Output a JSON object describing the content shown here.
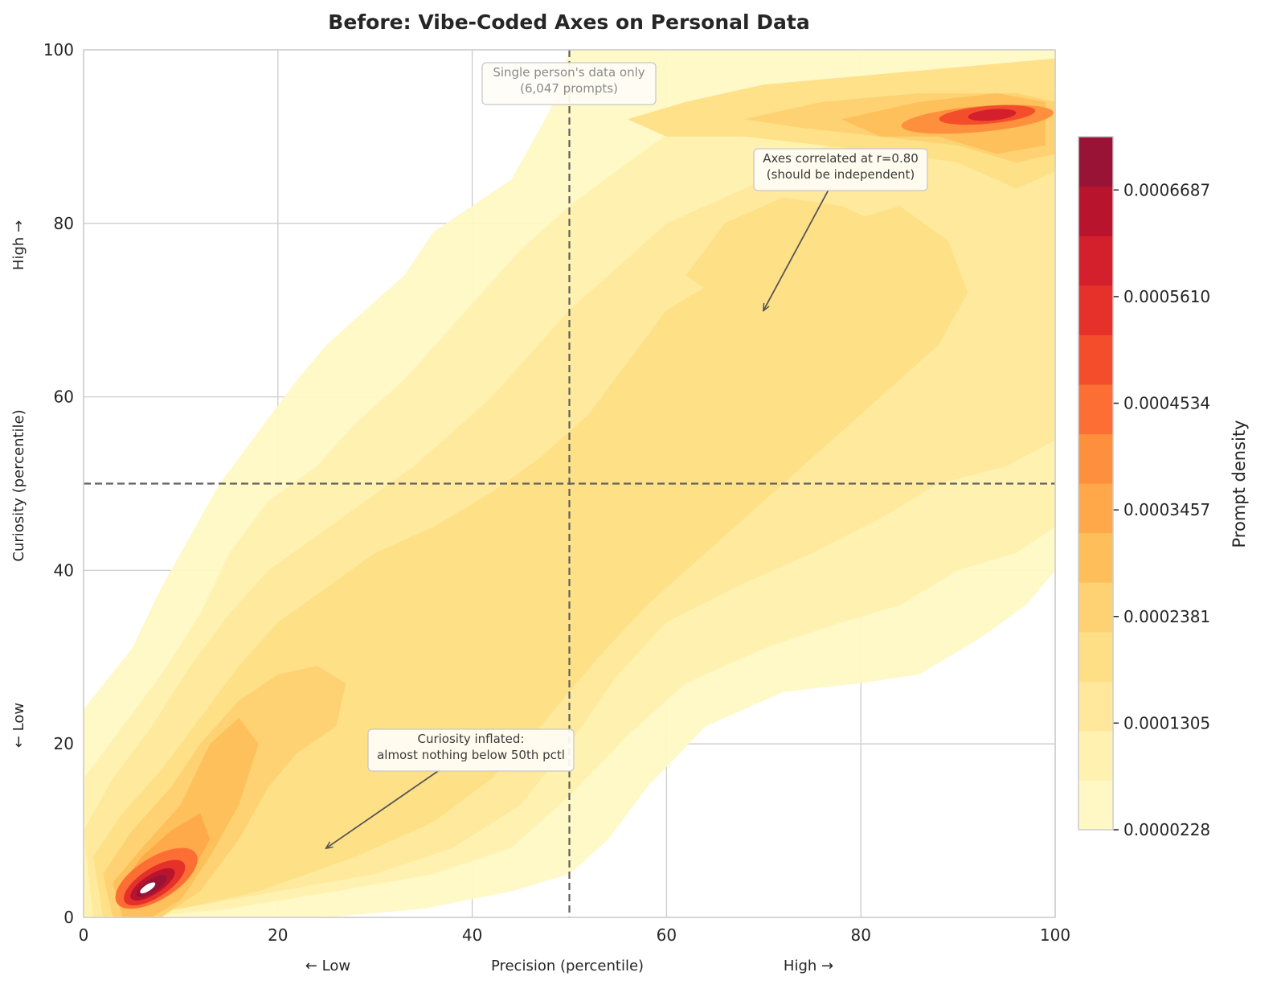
{
  "chart_data": {
    "type": "kde-contour",
    "title": "Before: Vibe-Coded Axes on Personal Data",
    "xlabel": "Precision (percentile)",
    "ylabel": "Curiosity (percentile)",
    "x_low_label": "← Low",
    "x_high_label": "High →",
    "y_low_label": "← Low",
    "y_high_label": "High →",
    "xlim": [
      0,
      100
    ],
    "ylim": [
      0,
      100
    ],
    "xticks": [
      "0",
      "20",
      "40",
      "60",
      "80",
      "100"
    ],
    "yticks": [
      "0",
      "20",
      "40",
      "60",
      "80",
      "100"
    ],
    "grid": true,
    "reference_lines": {
      "x": 50,
      "y": 50
    },
    "colorbar": {
      "label": "Prompt density",
      "ticks": [
        "0.0000228",
        "0.0001305",
        "0.0002381",
        "0.0003457",
        "0.0004534",
        "0.0005610",
        "0.0006687"
      ],
      "tick_values": [
        2.28e-05,
        0.0001305,
        0.0002381,
        0.0003457,
        0.0004534,
        0.000561,
        0.0006687
      ],
      "min": 2.28e-05,
      "max": 0.0007225,
      "levels": [
        "#fff8c4",
        "#fff1b0",
        "#ffe89b",
        "#fedf86",
        "#fed172",
        "#febf5a",
        "#fea84a",
        "#fd8f3d",
        "#fc6e33",
        "#f44d2c",
        "#e6302a",
        "#d41f2c",
        "#b9142e",
        "#981336"
      ]
    },
    "density_peaks": [
      {
        "name": "low-cluster",
        "x": 7,
        "y": 3.5,
        "peak_level": 14
      },
      {
        "name": "high-cluster",
        "x": 93,
        "y": 92.5,
        "peak_level": 11
      }
    ],
    "annotations": [
      {
        "name": "single-person-note",
        "lines": [
          "Single person's data only",
          "(6,047 prompts)"
        ]
      },
      {
        "name": "correlation-note",
        "lines": [
          "Axes correlated at r=0.80",
          "(should be independent)"
        ],
        "arrow_to": [
          70,
          70
        ]
      },
      {
        "name": "inflation-note",
        "lines": [
          "Curiosity inflated:",
          "almost nothing below 50th pctl"
        ],
        "arrow_to": [
          25,
          8
        ]
      }
    ]
  }
}
